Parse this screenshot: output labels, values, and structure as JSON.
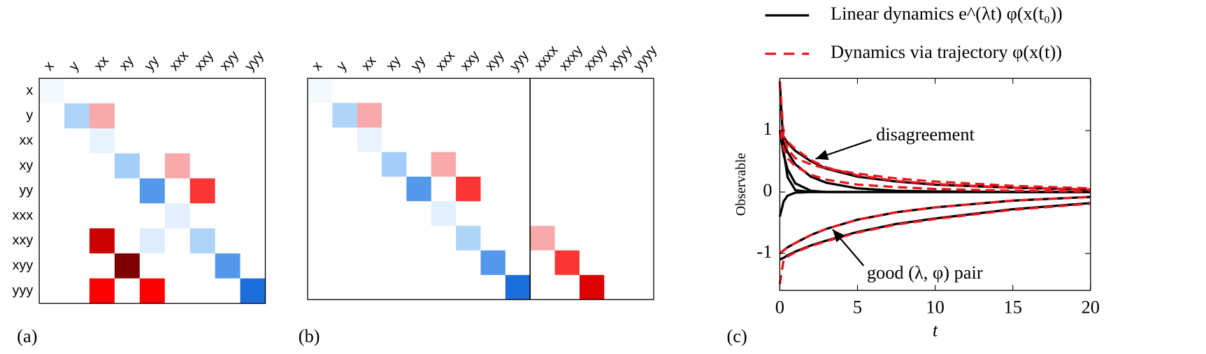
{
  "chart_data": [
    {
      "type": "heatmap",
      "panel_label": "(a)",
      "x_categories": [
        "x",
        "y",
        "xx",
        "xy",
        "yy",
        "xxx",
        "xxy",
        "xyy",
        "yyy"
      ],
      "y_categories": [
        "x",
        "y",
        "xx",
        "xy",
        "yy",
        "xxx",
        "xxy",
        "xyy",
        "yyy"
      ],
      "z": [
        [
          -0.05,
          0,
          0,
          0,
          0,
          0,
          0,
          0,
          0
        ],
        [
          0,
          -0.35,
          0.3,
          0,
          0,
          0,
          0,
          0,
          0
        ],
        [
          0,
          0,
          -0.1,
          0,
          0,
          0,
          0,
          0,
          0
        ],
        [
          0,
          0,
          0,
          -0.4,
          0,
          0.3,
          0,
          0,
          0
        ],
        [
          0,
          0,
          0,
          0,
          -0.7,
          0,
          0.55,
          0,
          0
        ],
        [
          0,
          0,
          0,
          0,
          0,
          -0.12,
          0,
          0,
          0
        ],
        [
          0,
          0,
          0.8,
          0,
          -0.15,
          0,
          -0.35,
          0,
          0
        ],
        [
          0,
          0,
          0,
          1,
          0,
          0,
          0,
          -0.7,
          0
        ],
        [
          0,
          0,
          0.66,
          0,
          0.66,
          0,
          0,
          0,
          -0.9
        ]
      ]
    },
    {
      "type": "heatmap",
      "panel_label": "(b)",
      "x_categories": [
        "x",
        "y",
        "xx",
        "xy",
        "yy",
        "xxx",
        "xxy",
        "xyy",
        "yyy",
        "xxxx",
        "xxxy",
        "xxyy",
        "xyyy",
        "yyyy"
      ],
      "z": [
        [
          -0.05,
          0,
          0,
          0,
          0,
          0,
          0,
          0,
          0,
          0,
          0,
          0,
          0,
          0
        ],
        [
          0,
          -0.35,
          0.3,
          0,
          0,
          0,
          0,
          0,
          0,
          0,
          0,
          0,
          0,
          0
        ],
        [
          0,
          0,
          -0.1,
          0,
          0,
          0,
          0,
          0,
          0,
          0,
          0,
          0,
          0,
          0
        ],
        [
          0,
          0,
          0,
          -0.4,
          0,
          0.3,
          0,
          0,
          0,
          0,
          0,
          0,
          0,
          0
        ],
        [
          0,
          0,
          0,
          0,
          -0.7,
          0,
          0.55,
          0,
          0,
          0,
          0,
          0,
          0,
          0
        ],
        [
          0,
          0,
          0,
          0,
          0,
          -0.12,
          0,
          0,
          0,
          0,
          0,
          0,
          0,
          0
        ],
        [
          0,
          0,
          0,
          0,
          0,
          0,
          -0.35,
          0,
          0,
          0.3,
          0,
          0,
          0,
          0
        ],
        [
          0,
          0,
          0,
          0,
          0,
          0,
          0,
          -0.7,
          0,
          0,
          0.55,
          0,
          0,
          0
        ],
        [
          0,
          0,
          0,
          0,
          0,
          0,
          0,
          0,
          -0.9,
          0,
          0,
          0.75,
          0,
          0
        ]
      ]
    },
    {
      "type": "line",
      "panel_label": "(c)",
      "xlabel": "t",
      "ylabel": "Observable",
      "xlim": [
        0,
        20
      ],
      "ylim": [
        -1.6,
        1.85
      ],
      "xticks": [
        0,
        5,
        10,
        15,
        20
      ],
      "yticks": [
        -1,
        0,
        1
      ],
      "x": [
        0,
        0.25,
        0.5,
        1,
        2,
        3,
        5,
        7.5,
        10,
        15,
        20
      ],
      "series": [
        {
          "name": "Linear dynamics e^(λt) φ(x(t₀))",
          "color": "#000000",
          "dashed": false,
          "curves": [
            [
              1.8,
              0.66,
              0.24,
              0.03,
              0,
              0,
              0,
              0,
              0,
              0,
              0
            ],
            [
              1,
              0.6,
              0.37,
              0.14,
              0.02,
              0,
              0,
              0,
              0,
              0,
              0
            ],
            [
              1,
              0.8,
              0.65,
              0.45,
              0.25,
              0.15,
              0.06,
              0.02,
              0.01,
              0,
              0
            ],
            [
              1,
              0.9,
              0.8,
              0.67,
              0.5,
              0.38,
              0.25,
              0.17,
              0.12,
              0.07,
              0.04
            ],
            [
              -0.4,
              -0.15,
              -0.06,
              -0.01,
              0,
              0,
              0,
              0,
              0,
              0,
              0
            ],
            [
              -1,
              -0.95,
              -0.9,
              -0.83,
              -0.7,
              -0.6,
              -0.45,
              -0.33,
              -0.25,
              -0.14,
              -0.08
            ],
            [
              -1.1,
              -1.07,
              -1.03,
              -0.97,
              -0.87,
              -0.79,
              -0.65,
              -0.52,
              -0.43,
              -0.28,
              -0.18
            ]
          ]
        },
        {
          "name": "Dynamics via trajectory φ(x(t))",
          "color": "#e8141c",
          "dashed": true,
          "curves": [
            [
              1.8,
              0.9,
              0.7,
              0.55,
              0.45,
              0.38,
              0.3,
              0.22,
              0.17,
              0.1,
              0.06
            ],
            [
              1,
              0.7,
              0.55,
              0.42,
              0.28,
              0.2,
              0.12,
              0.08,
              0.05,
              0.02,
              0.01
            ],
            [
              1,
              0.9,
              0.82,
              0.7,
              0.52,
              0.4,
              0.27,
              0.18,
              0.13,
              0.07,
              0.04
            ],
            [
              -1,
              -0.95,
              -0.9,
              -0.83,
              -0.7,
              -0.6,
              -0.45,
              -0.33,
              -0.25,
              -0.14,
              -0.08
            ],
            [
              -1.5,
              -1.1,
              -1.05,
              -0.98,
              -0.88,
              -0.8,
              -0.66,
              -0.53,
              -0.44,
              -0.29,
              -0.19
            ]
          ]
        }
      ],
      "annotations": [
        {
          "text": "disagreement"
        },
        {
          "text": "good (λ, φ) pair"
        }
      ]
    }
  ]
}
